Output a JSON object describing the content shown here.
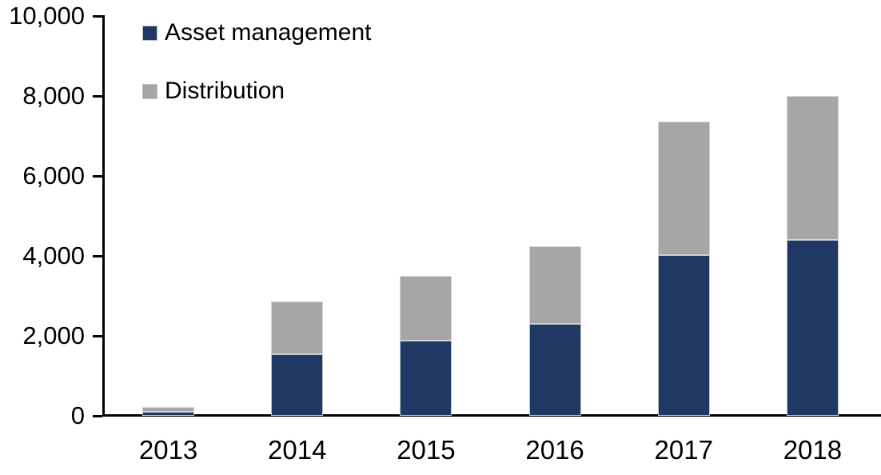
{
  "chart_data": {
    "type": "bar",
    "variant": "stacked-column",
    "title": "",
    "categories": [
      "2013",
      "2014",
      "2015",
      "2016",
      "2017",
      "2018"
    ],
    "series": [
      {
        "name": "Asset management",
        "color": "#1F3864",
        "values": [
          100,
          1550,
          1890,
          2300,
          4030,
          4400
        ]
      },
      {
        "name": "Distribution",
        "color": "#A6A6A6",
        "values": [
          120,
          1310,
          1610,
          1950,
          3340,
          3600
        ]
      }
    ],
    "totals": [
      220,
      2860,
      3500,
      4250,
      7370,
      8000
    ],
    "xlabel": "",
    "ylabel": "",
    "ylim": [
      0,
      10000
    ],
    "yticks": [
      0,
      2000,
      4000,
      6000,
      8000,
      10000
    ],
    "ytick_labels": [
      "0",
      "2,000",
      "4,000",
      "6,000",
      "8,000",
      "10,000"
    ],
    "grid": false,
    "legend_position": "top-left",
    "axis_color": "#000000",
    "text_color": "#000000",
    "background_color": "#FFFFFF"
  }
}
